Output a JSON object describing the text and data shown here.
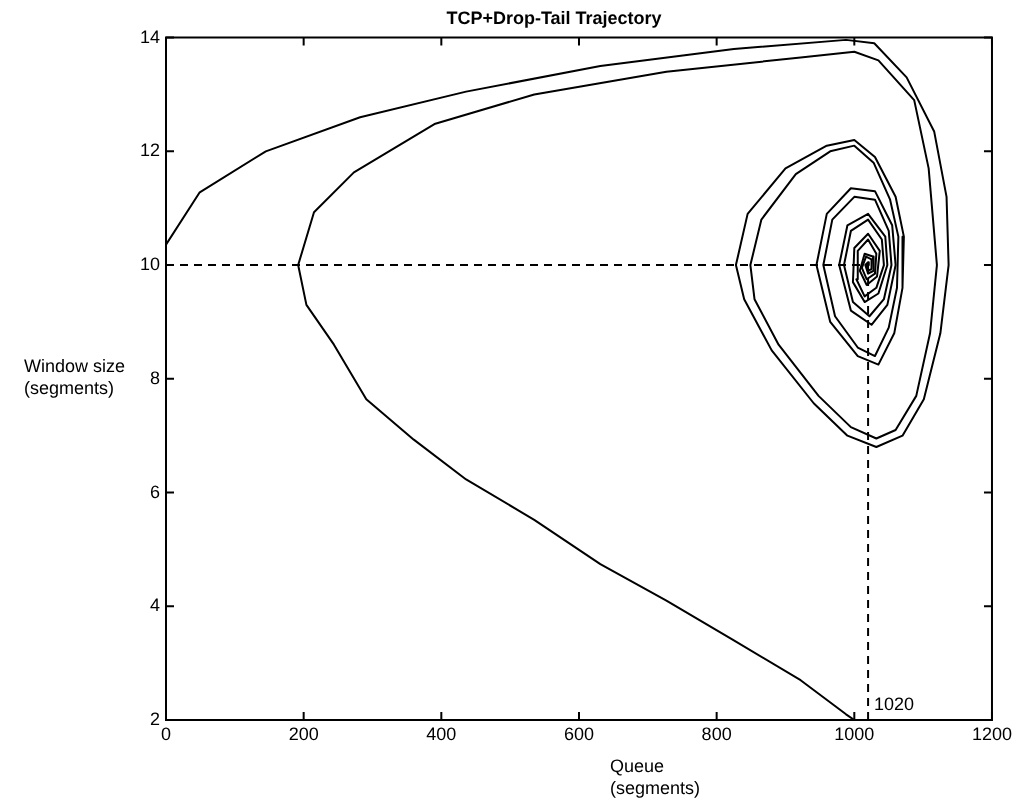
{
  "chart_data": {
    "type": "line",
    "title": "TCP+Drop-Tail Trajectory",
    "xlabel": "Queue (segments)",
    "ylabel": "Window size (segments)",
    "xlim": [
      0,
      1200
    ],
    "xticks": [
      0,
      200,
      400,
      600,
      800,
      1000,
      1200
    ],
    "ylim": [
      2,
      14
    ],
    "yticks": [
      2,
      4,
      6,
      8,
      10,
      12,
      14
    ],
    "grid": false,
    "legend": false,
    "marker": "none",
    "line_style": "solid",
    "series": [
      {
        "color": "#000000",
        "x": [
          0,
          49,
          145,
          282,
          436,
          631,
          825,
          988,
          1029,
          1076,
          1116,
          1134,
          1137,
          1125,
          1101,
          1070,
          1032,
          990,
          941,
          880,
          840,
          828,
          845,
          900,
          960,
          1000,
          1030,
          1060,
          1072,
          1070,
          1058,
          1035,
          1005,
          965,
          945,
          960,
          995,
          1030,
          1055,
          1060,
          1048,
          1025,
          995,
          978,
          990,
          1020,
          1045,
          1048,
          1035,
          1015,
          998,
          1000,
          1020,
          1037,
          1033,
          1018,
          1008,
          1015,
          1027,
          1028,
          1020,
          1016,
          1020,
          1022,
          1020
        ],
        "values": [
          10.36,
          11.28,
          12.0,
          12.6,
          13.05,
          13.5,
          13.8,
          13.96,
          13.9,
          13.3,
          12.35,
          11.2,
          10,
          8.8,
          7.64,
          7.0,
          6.8,
          7.0,
          7.57,
          8.5,
          9.4,
          10,
          10.9,
          11.7,
          12.1,
          12.2,
          11.9,
          11.2,
          10.5,
          9.6,
          8.8,
          8.25,
          8.4,
          9.0,
          10,
          10.9,
          11.35,
          11.3,
          10.7,
          10,
          9.3,
          8.95,
          9.2,
          10,
          10.7,
          10.9,
          10.5,
          10,
          9.5,
          9.35,
          9.7,
          10.3,
          10.55,
          10.25,
          9.8,
          9.65,
          9.9,
          10.2,
          10.15,
          9.9,
          9.85,
          10,
          10.05,
          10,
          10
        ]
      },
      {
        "color": "#000000",
        "x": [
          1000,
          988,
          922,
          825,
          727,
          631,
          535,
          436,
          360,
          291,
          244,
          204,
          192,
          215,
          273,
          390,
          535,
          727,
          922,
          1000,
          1035,
          1087,
          1108,
          1120,
          1110,
          1090,
          1060,
          1032,
          995,
          948,
          890,
          855,
          849,
          865,
          915,
          965,
          1000,
          1028,
          1052,
          1064,
          1062,
          1050,
          1030,
          1005,
          972,
          955,
          968,
          1000,
          1030,
          1050,
          1054,
          1043,
          1022,
          998,
          985,
          995,
          1020,
          1040,
          1043,
          1032,
          1015,
          1003,
          1005,
          1020,
          1032,
          1030,
          1018,
          1011,
          1017,
          1025,
          1025,
          1020,
          1018,
          1020
        ],
        "values": [
          2,
          2.1,
          2.7,
          3.4,
          4.1,
          4.74,
          5.52,
          6.23,
          6.93,
          7.64,
          8.6,
          9.3,
          10,
          10.93,
          11.63,
          12.48,
          13.0,
          13.4,
          13.65,
          13.75,
          13.6,
          12.9,
          11.7,
          10,
          8.8,
          7.7,
          7.1,
          6.95,
          7.15,
          7.7,
          8.6,
          9.4,
          10,
          10.8,
          11.6,
          12.0,
          12.1,
          11.8,
          11.15,
          10.5,
          9.6,
          8.9,
          8.4,
          8.55,
          9.1,
          10,
          10.8,
          11.2,
          11.15,
          10.6,
          10,
          9.4,
          9.1,
          9.35,
          10,
          10.6,
          10.8,
          10.45,
          10,
          9.6,
          9.45,
          9.75,
          10.25,
          10.45,
          10.2,
          9.85,
          9.75,
          9.95,
          10.15,
          10.1,
          9.93,
          9.9,
          10,
          10
        ]
      },
      {
        "color": "#000000",
        "line_style": "dashed",
        "x": [
          0,
          1020
        ],
        "values": [
          10,
          10
        ]
      },
      {
        "color": "#000000",
        "line_style": "dashed",
        "x": [
          1020,
          1020
        ],
        "values": [
          2,
          10
        ]
      }
    ],
    "annotations": [
      {
        "text": "1020",
        "x": 1020,
        "y": 2
      }
    ]
  }
}
